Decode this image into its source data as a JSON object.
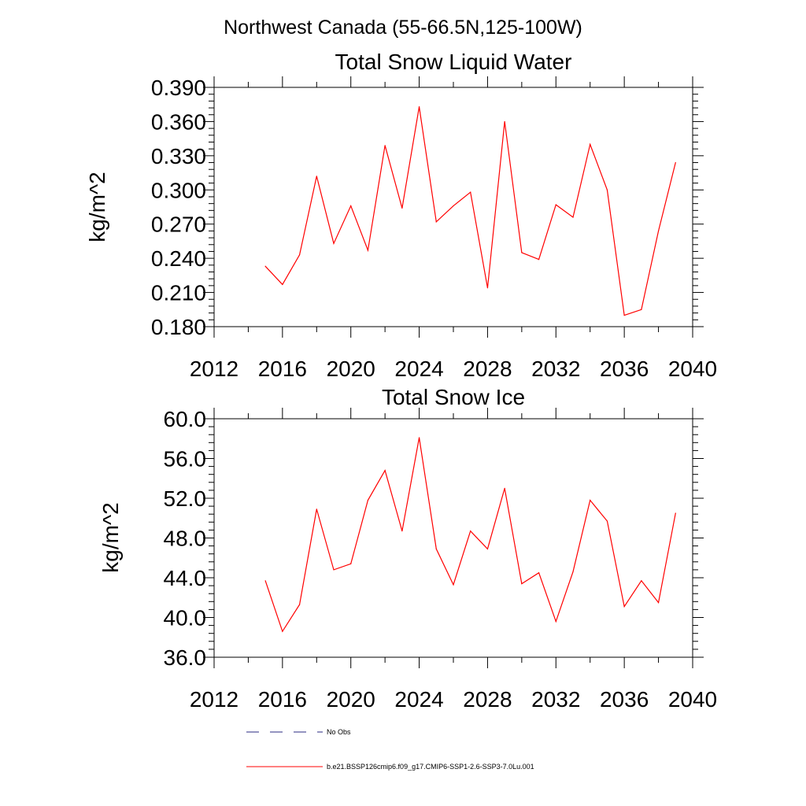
{
  "page_title": "Northwest Canada (55-66.5N,125-100W)",
  "chart_data": [
    {
      "type": "line",
      "title": "Total Snow Liquid Water",
      "ylabel": "kg/m^2",
      "xlabel": "",
      "xlim": [
        2012,
        2040
      ],
      "ylim": [
        0.18,
        0.39
      ],
      "xticks": [
        2012,
        2016,
        2020,
        2024,
        2028,
        2032,
        2036,
        2040
      ],
      "xtick_labels": [
        "2012",
        "2016",
        "2020",
        "2024",
        "2028",
        "2032",
        "2036",
        "2040"
      ],
      "yticks": [
        0.18,
        0.21,
        0.24,
        0.27,
        0.3,
        0.33,
        0.36,
        0.39
      ],
      "ytick_labels": [
        "0.180",
        "0.210",
        "0.240",
        "0.270",
        "0.300",
        "0.330",
        "0.360",
        "0.390"
      ],
      "grid": false,
      "series": [
        {
          "name": "b.e21.BSSP126cmip6.f09_g17.CMIP6-SSP1-2.6-SSP3-7.0Lu.001",
          "color": "#ff0000",
          "x": [
            2015,
            2016,
            2017,
            2018,
            2019,
            2020,
            2021,
            2022,
            2023,
            2024,
            2025,
            2026,
            2027,
            2028,
            2029,
            2030,
            2031,
            2032,
            2033,
            2034,
            2035,
            2036,
            2037,
            2038,
            2039
          ],
          "y": [
            0.233,
            0.217,
            0.243,
            0.312,
            0.253,
            0.286,
            0.247,
            0.339,
            0.284,
            0.373,
            0.272,
            0.286,
            0.298,
            0.214,
            0.36,
            0.245,
            0.239,
            0.287,
            0.276,
            0.34,
            0.3,
            0.19,
            0.195,
            0.264,
            0.324
          ]
        }
      ]
    },
    {
      "type": "line",
      "title": "Total Snow Ice",
      "ylabel": "kg/m^2",
      "xlabel": "",
      "xlim": [
        2012,
        2040
      ],
      "ylim": [
        36.0,
        60.0
      ],
      "xticks": [
        2012,
        2016,
        2020,
        2024,
        2028,
        2032,
        2036,
        2040
      ],
      "xtick_labels": [
        "2012",
        "2016",
        "2020",
        "2024",
        "2028",
        "2032",
        "2036",
        "2040"
      ],
      "yticks": [
        36,
        40,
        44,
        48,
        52,
        56,
        60
      ],
      "ytick_labels": [
        "36.0",
        "40.0",
        "44.0",
        "48.0",
        "52.0",
        "56.0",
        "60.0"
      ],
      "grid": false,
      "series": [
        {
          "name": "b.e21.BSSP126cmip6.f09_g17.CMIP6-SSP1-2.6-SSP3-7.0Lu.001",
          "color": "#ff0000",
          "x": [
            2015,
            2016,
            2017,
            2018,
            2019,
            2020,
            2021,
            2022,
            2023,
            2024,
            2025,
            2026,
            2027,
            2028,
            2029,
            2030,
            2031,
            2032,
            2033,
            2034,
            2035,
            2036,
            2037,
            2038,
            2039
          ],
          "y": [
            43.7,
            38.6,
            41.3,
            50.9,
            44.8,
            45.4,
            51.8,
            54.8,
            48.7,
            58.1,
            46.9,
            43.3,
            48.7,
            46.9,
            53.0,
            43.4,
            44.5,
            39.6,
            44.6,
            51.8,
            49.7,
            41.1,
            43.7,
            41.5,
            50.5
          ]
        }
      ]
    }
  ],
  "legend": {
    "placement": "bottom",
    "items": [
      {
        "label": "No Obs",
        "style": "dashed",
        "color": "#2a2a80"
      },
      {
        "label": "b.e21.BSSP126cmip6.f09_g17.CMIP6-SSP1-2.6-SSP3-7.0Lu.001",
        "style": "solid",
        "color": "#ff0000"
      }
    ]
  }
}
